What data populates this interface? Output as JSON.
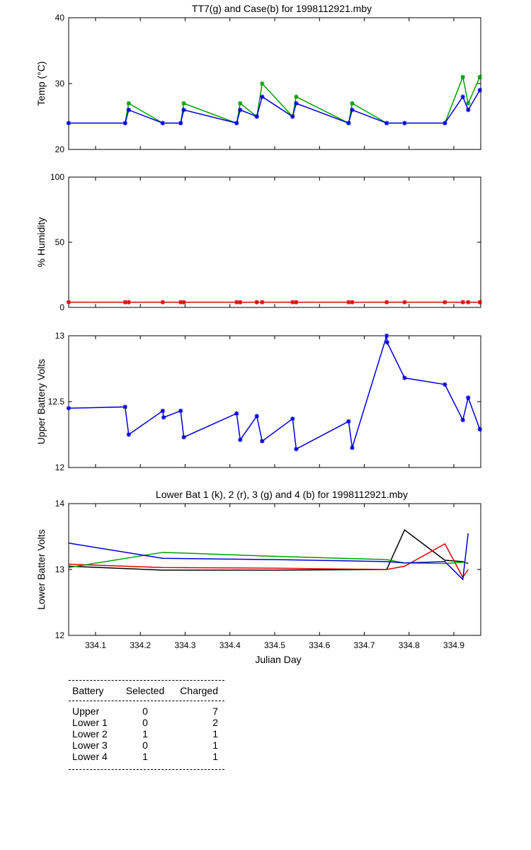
{
  "chart_data": [
    {
      "type": "line",
      "id": "temp",
      "title": "TT7(g) and Case(b) for 1998112921.mby",
      "xlabel": "",
      "ylabel": "Temp  (°C)",
      "xlim": [
        334.04,
        334.96
      ],
      "ylim": [
        20,
        40
      ],
      "yticks": [
        "20",
        "30",
        "40"
      ],
      "series": [
        {
          "name": "TT7",
          "color": "#00a000",
          "marker": "star",
          "x": [
            334.04,
            334.166,
            334.174,
            334.25,
            334.29,
            334.297,
            334.415,
            334.423,
            334.46,
            334.472,
            334.54,
            334.548,
            334.665,
            334.673,
            334.75,
            334.79,
            334.88,
            334.92,
            334.932,
            334.958
          ],
          "y": [
            24,
            24,
            27,
            24,
            24,
            27,
            24,
            27,
            25,
            30,
            25,
            28,
            24,
            27,
            24,
            24,
            24,
            31,
            27,
            31
          ]
        },
        {
          "name": "Case",
          "color": "#0000e0",
          "marker": "star",
          "x": [
            334.04,
            334.166,
            334.174,
            334.25,
            334.29,
            334.297,
            334.415,
            334.423,
            334.46,
            334.472,
            334.54,
            334.548,
            334.665,
            334.673,
            334.75,
            334.79,
            334.88,
            334.92,
            334.932,
            334.958
          ],
          "y": [
            24,
            24,
            26,
            24,
            24,
            26,
            24,
            26,
            25,
            28,
            25,
            27,
            24,
            26,
            24,
            24,
            24,
            28,
            26,
            29
          ]
        }
      ]
    },
    {
      "type": "line",
      "id": "humidity",
      "title": "",
      "xlabel": "",
      "ylabel": "% Humidity",
      "xlim": [
        334.04,
        334.96
      ],
      "ylim": [
        0,
        100
      ],
      "yticks": [
        "0",
        "50",
        "100"
      ],
      "series": [
        {
          "name": "Humidity",
          "color": "#e00000",
          "marker": "star",
          "x": [
            334.04,
            334.166,
            334.174,
            334.25,
            334.29,
            334.297,
            334.415,
            334.423,
            334.46,
            334.472,
            334.54,
            334.548,
            334.665,
            334.673,
            334.75,
            334.79,
            334.88,
            334.92,
            334.932,
            334.958
          ],
          "y": [
            4,
            4,
            4,
            4,
            4,
            4,
            4,
            4,
            4,
            4,
            4,
            4,
            4,
            4,
            4,
            4,
            4,
            4,
            4,
            4
          ]
        }
      ]
    },
    {
      "type": "line",
      "id": "upper",
      "title": "",
      "xlabel": "",
      "ylabel": "Upper Battery Volts",
      "xlim": [
        334.04,
        334.96
      ],
      "ylim": [
        12,
        13
      ],
      "yticks": [
        "12",
        "12.5",
        "13"
      ],
      "series": [
        {
          "name": "Upper Battery",
          "color": "#0000e0",
          "marker": "star",
          "x": [
            334.04,
            334.166,
            334.174,
            334.25,
            334.252,
            334.29,
            334.297,
            334.415,
            334.423,
            334.46,
            334.472,
            334.54,
            334.548,
            334.665,
            334.673,
            334.75,
            334.751,
            334.79,
            334.88,
            334.92,
            334.932,
            334.958
          ],
          "y": [
            12.45,
            12.46,
            12.25,
            12.43,
            12.38,
            12.43,
            12.23,
            12.41,
            12.21,
            12.39,
            12.2,
            12.37,
            12.14,
            12.35,
            12.15,
            13.0,
            12.95,
            12.68,
            12.63,
            12.36,
            12.53,
            12.29
          ]
        }
      ]
    },
    {
      "type": "line",
      "id": "lower",
      "title": "Lower Bat 1 (k), 2 (r), 3 (g) and 4 (b) for 1998112921.mby",
      "xlabel": "Julian Day",
      "ylabel": "Lower Batter Volts",
      "xlim": [
        334.04,
        334.96
      ],
      "ylim": [
        12,
        14
      ],
      "yticks": [
        "12",
        "13",
        "14"
      ],
      "xticks": [
        "334.1",
        "334.2",
        "334.3",
        "334.4",
        "334.5",
        "334.6",
        "334.7",
        "334.8",
        "334.9"
      ],
      "series": [
        {
          "name": "Lower 1",
          "color": "#000000",
          "x": [
            334.04,
            334.25,
            334.5,
            334.75,
            334.79,
            334.88,
            334.92,
            334.932
          ],
          "y": [
            13.05,
            12.99,
            12.99,
            13.0,
            13.6,
            13.14,
            13.12,
            13.09
          ]
        },
        {
          "name": "Lower 2",
          "color": "#e00000",
          "x": [
            334.04,
            334.25,
            334.5,
            334.75,
            334.79,
            334.88,
            334.92,
            334.932
          ],
          "y": [
            13.08,
            13.03,
            13.02,
            13.0,
            13.05,
            13.39,
            12.88,
            13.0
          ]
        },
        {
          "name": "Lower 3",
          "color": "#00a000",
          "x": [
            334.04,
            334.25,
            334.5,
            334.75,
            334.79,
            334.88,
            334.92,
            334.932
          ],
          "y": [
            13.03,
            13.26,
            13.2,
            13.15,
            13.1,
            13.09,
            13.11,
            13.1
          ]
        },
        {
          "name": "Lower 4",
          "color": "#0000e0",
          "x": [
            334.04,
            334.25,
            334.5,
            334.75,
            334.79,
            334.88,
            334.92,
            334.932
          ],
          "y": [
            13.4,
            13.17,
            13.15,
            13.12,
            13.1,
            13.12,
            12.85,
            13.55
          ]
        }
      ]
    }
  ],
  "battery_table": {
    "headers": [
      "Battery",
      "Selected",
      "Charged"
    ],
    "rows": [
      [
        "Upper",
        "0",
        "7"
      ],
      [
        "Lower 1",
        "0",
        "2"
      ],
      [
        "Lower 2",
        "1",
        "1"
      ],
      [
        "Lower 3",
        "0",
        "1"
      ],
      [
        "Lower 4",
        "1",
        "1"
      ]
    ]
  }
}
